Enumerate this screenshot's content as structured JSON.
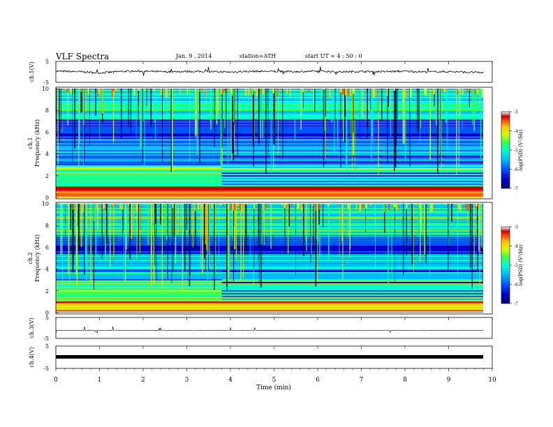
{
  "header": {
    "title": "VLF  Spectra",
    "date": "Jan. 9  , 2014",
    "station": "station=ATH",
    "start": "start  UT  =   4  : 50 : 0"
  },
  "colors": {
    "colormap": [
      "#000066",
      "#0000cc",
      "#0055ff",
      "#00bbff",
      "#00ffcc",
      "#33ff55",
      "#ccff00",
      "#ffcc00",
      "#ff5500",
      "#cc0000",
      "#ffffff"
    ],
    "trace": "#000000",
    "axis": "#000000"
  },
  "chart_data": [
    {
      "type": "line",
      "name": "ch1-waveform",
      "ylabel": "ch.1(V)",
      "ylim": [
        -5,
        5
      ],
      "y_ticks": [
        "5",
        "-5"
      ],
      "x": [
        0,
        0.5,
        1,
        1.5,
        2,
        2.5,
        3,
        3.5,
        4,
        4.5,
        5,
        5.5,
        6,
        6.5,
        7,
        7.5,
        8,
        8.5,
        9,
        9.5,
        9.8
      ],
      "values": [
        0.3,
        0.1,
        -0.5,
        0.2,
        0.3,
        0.0,
        0.2,
        0.1,
        -0.1,
        0.3,
        0.2,
        0.1,
        0.3,
        0.0,
        0.2,
        0.1,
        0.3,
        0.0,
        0.1,
        -0.2,
        -0.4
      ]
    },
    {
      "type": "heatmap",
      "name": "ch1-spectrogram",
      "ylabel": "ch.1\nFrequency  (kHz)",
      "ylim": [
        0,
        10
      ],
      "y_ticks": [
        "0",
        "2",
        "4",
        "6",
        "8",
        "10"
      ],
      "colorbar": {
        "label": "log(PSD) (V²/Hz)",
        "range": [
          -7,
          -3
        ],
        "ticks": [
          "-3",
          "-4",
          "-5",
          "-6",
          "-7"
        ]
      }
    },
    {
      "type": "heatmap",
      "name": "ch2-spectrogram",
      "ylabel": "ch.2\nFrequency  (kHz)",
      "ylim": [
        0,
        10
      ],
      "y_ticks": [
        "0",
        "2",
        "4",
        "6",
        "8",
        "10"
      ],
      "colorbar": {
        "label": "log(PSD) (V²/Hz)",
        "range": [
          -7,
          -3
        ],
        "ticks": [
          "-3",
          "-4",
          "-5",
          "-6",
          "-7"
        ]
      }
    },
    {
      "type": "line",
      "name": "ch3-waveform",
      "ylabel": "ch.3(V)",
      "ylim": [
        -5,
        5
      ],
      "y_ticks": [
        "5",
        "-5"
      ],
      "x": [
        0,
        9.8
      ],
      "values": [
        -1.2,
        -1.2
      ]
    },
    {
      "type": "line",
      "name": "ch4-waveform",
      "ylabel": "ch.4(V)",
      "ylim": [
        -5,
        5
      ],
      "y_ticks": [
        "5",
        "-5"
      ],
      "x": [
        0,
        9.8
      ],
      "values": [
        -0.5,
        -0.5
      ]
    }
  ],
  "x_axis": {
    "label": "Time  (min)",
    "ticks": [
      "0",
      "1",
      "2",
      "3",
      "4",
      "5",
      "6",
      "7",
      "8",
      "9",
      "10"
    ],
    "xlim": [
      0,
      10
    ]
  }
}
